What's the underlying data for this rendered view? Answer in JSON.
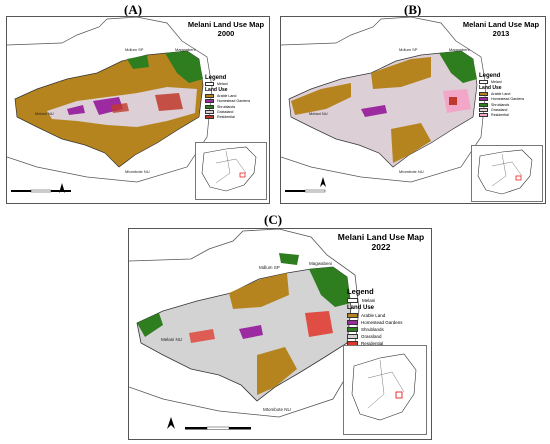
{
  "panels": [
    {
      "letter": "(A)",
      "title_line1": "Melani Land Use Map",
      "title_line2": "2000",
      "legend_title": "Legend",
      "boundary_label": "Melani",
      "land_use_label": "Land Use",
      "legend_items": [
        {
          "label": "Arable Land",
          "color": "#b5841f"
        },
        {
          "label": "Homestead Gardens",
          "color": "#9c2aa0"
        },
        {
          "label": "Shrublands",
          "color": "#2e7d1f"
        },
        {
          "label": "Grassland",
          "color": "#dccfd5"
        },
        {
          "label": "Residential",
          "color": "#c0392b"
        }
      ],
      "places": {
        "north": "Mdlum SP",
        "northeast": "Magwabeni",
        "west": "Melani NU",
        "south": "Mtombote NU"
      }
    },
    {
      "letter": "(B)",
      "title_line1": "Melani Land Use Map",
      "title_line2": "2013",
      "legend_title": "Legend",
      "boundary_label": "Melani",
      "land_use_label": "Land Use",
      "legend_items": [
        {
          "label": "Arable Land",
          "color": "#b5841f"
        },
        {
          "label": "Homestead Gardens",
          "color": "#9c2aa0"
        },
        {
          "label": "Shrublands",
          "color": "#2e7d1f"
        },
        {
          "label": "Grassland",
          "color": "#dccfd5"
        },
        {
          "label": "Residential",
          "color": "#f2a6c8"
        }
      ],
      "places": {
        "north": "Mdlum SP",
        "northeast": "Magwabeni",
        "west": "Melani NU",
        "south": "Mtombote NU"
      }
    },
    {
      "letter": "(C)",
      "title_line1": "Melani Land Use Map",
      "title_line2": "2022",
      "legend_title": "Legend",
      "boundary_label": "Melani",
      "land_use_label": "Land Use",
      "legend_items": [
        {
          "label": "Arable Land",
          "color": "#b5841f"
        },
        {
          "label": "Homestead Gardens",
          "color": "#9c2aa0"
        },
        {
          "label": "Shrublands",
          "color": "#2e7d1f"
        },
        {
          "label": "Grassland",
          "color": "#d3d3d3"
        },
        {
          "label": "Residential",
          "color": "#e0352b"
        }
      ],
      "places": {
        "north": "Mdlum SP",
        "northeast": "Magwabeni",
        "west": "Melani NU",
        "south": "Mtombote NU"
      }
    }
  ],
  "north_label": "N"
}
